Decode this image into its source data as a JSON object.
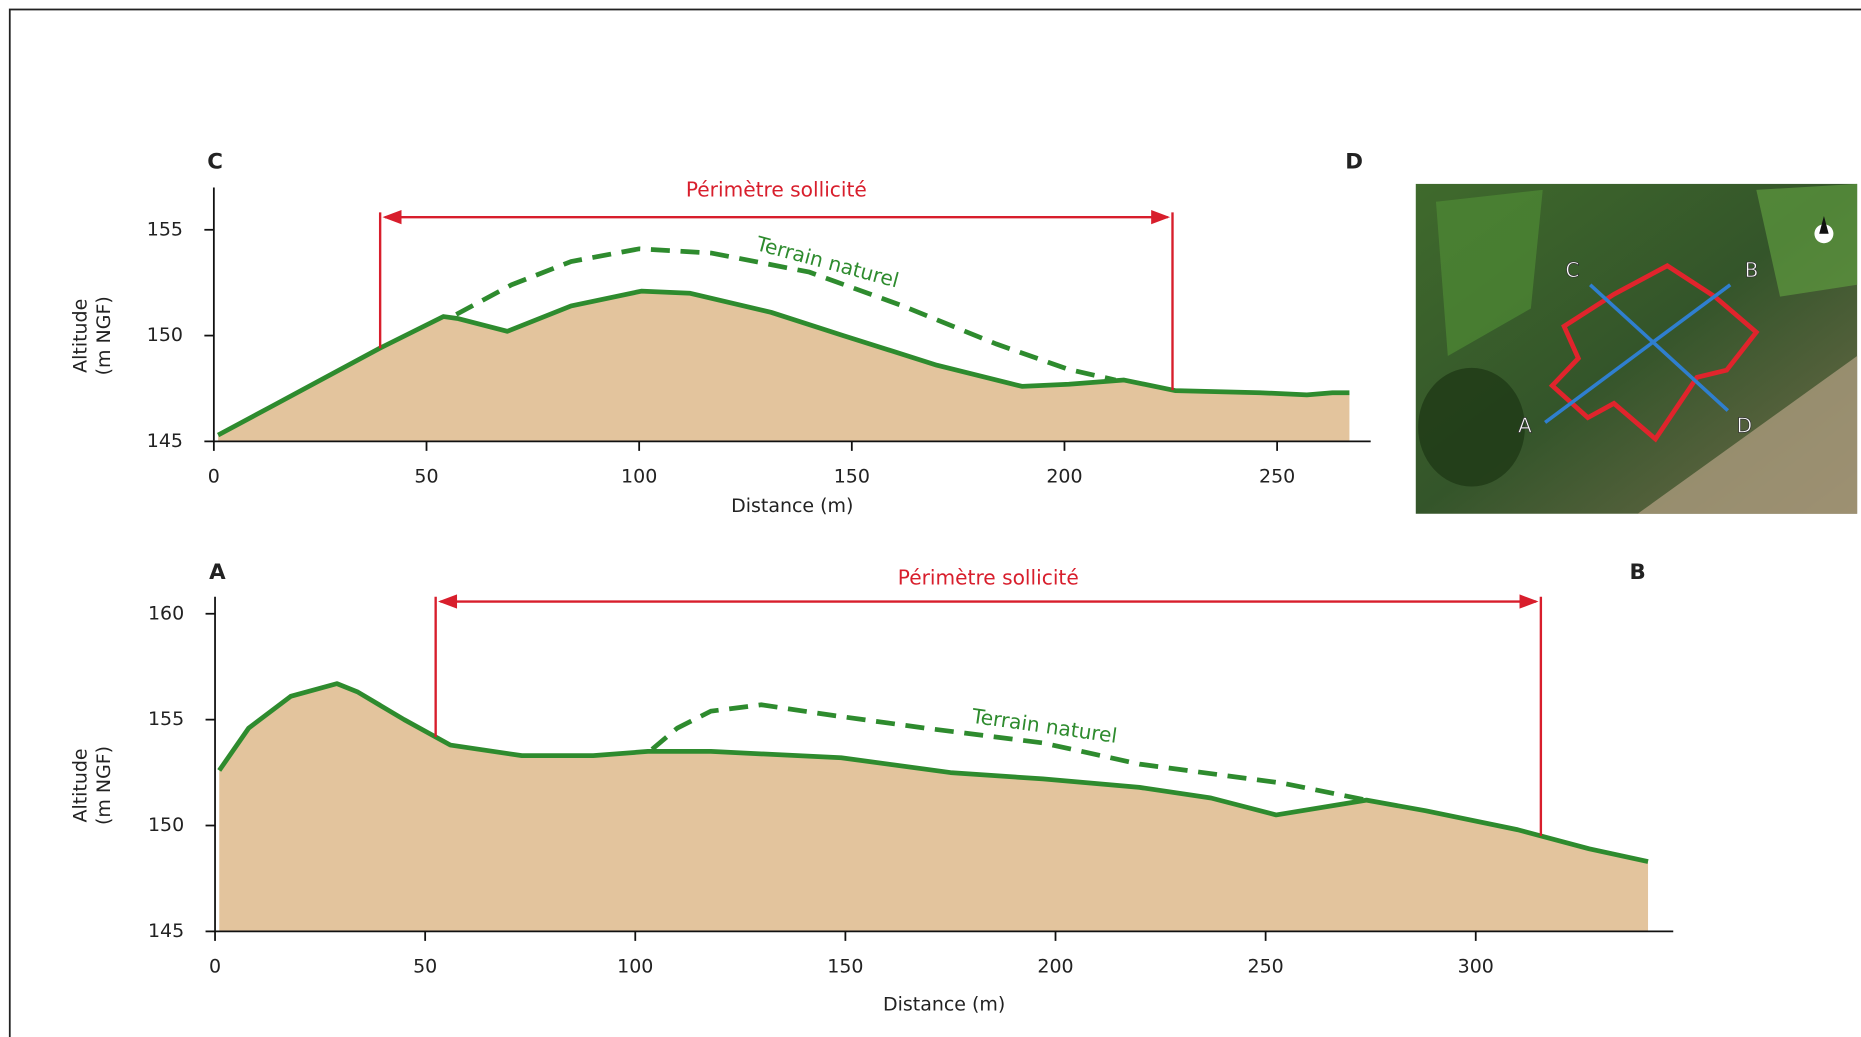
{
  "chart_data": [
    {
      "type": "area",
      "corner_labels": [
        "C",
        "D"
      ],
      "x_label": "Distance (m)",
      "y_label": [
        "Altitude",
        "(m NGF)"
      ],
      "xlim": [
        0,
        272
      ],
      "ylim": [
        145,
        157
      ],
      "xticks": [
        0,
        50,
        100,
        150,
        200,
        250
      ],
      "yticks": [
        145,
        150,
        155
      ],
      "color": "#2e8b2e",
      "fill": "#e3c49d",
      "x": [
        1,
        14,
        39,
        54,
        57.5,
        69,
        84,
        100.5,
        112,
        131,
        148,
        170,
        190,
        201,
        214,
        226,
        246,
        257,
        263,
        267
      ],
      "values": [
        145.3,
        146.7,
        149.4,
        150.9,
        150.8,
        150.2,
        151.4,
        152.1,
        152,
        151.1,
        150,
        148.6,
        147.6,
        147.7,
        147.9,
        147.4,
        147.3,
        147.2,
        147.3,
        147.3
      ],
      "natural_terrain": {
        "label": "Terrain naturel",
        "x": [
          57,
          70,
          84,
          100,
          117,
          140,
          162,
          184,
          201,
          212
        ],
        "values": [
          151,
          152.4,
          153.5,
          154.1,
          153.9,
          153,
          151.4,
          149.6,
          148.4,
          147.9
        ]
      },
      "perimeter": {
        "label": "Périmètre sollicité",
        "range": [
          39.1,
          225.4
        ],
        "color": "#d81e2c"
      }
    },
    {
      "type": "area",
      "corner_labels": [
        "A",
        "B"
      ],
      "x_label": "Distance (m)",
      "y_label": [
        "Altitude",
        "(m NGF)"
      ],
      "xlim": [
        0,
        347
      ],
      "ylim": [
        145,
        160.8
      ],
      "xticks": [
        0,
        50,
        100,
        150,
        200,
        250,
        300
      ],
      "yticks": [
        145,
        150,
        155,
        160
      ],
      "color": "#2e8b2e",
      "fill": "#e3c49d",
      "x": [
        1,
        8,
        18,
        29,
        34,
        45,
        56,
        73,
        90,
        103,
        118,
        149,
        175,
        197,
        220,
        237,
        252.5,
        274,
        288,
        310,
        327,
        341
      ],
      "values": [
        152.6,
        154.6,
        156.1,
        156.7,
        156.3,
        155,
        153.8,
        153.3,
        153.3,
        153.5,
        153.5,
        153.2,
        152.5,
        152.2,
        151.8,
        151.3,
        150.5,
        151.2,
        150.7,
        149.8,
        148.9,
        148.3
      ],
      "natural_terrain": {
        "label": "Terrain naturel",
        "x": [
          104,
          110,
          118,
          130,
          147,
          169,
          197,
          220,
          254,
          274
        ],
        "values": [
          153.6,
          154.6,
          155.4,
          155.7,
          155.2,
          154.6,
          153.9,
          152.9,
          152,
          151.2
        ]
      },
      "perimeter": {
        "label": "Périmètre sollicité",
        "range": [
          52.5,
          315.5
        ],
        "color": "#d81e2c"
      }
    }
  ],
  "map": {
    "labels": [
      "C",
      "B",
      "A",
      "D"
    ]
  }
}
